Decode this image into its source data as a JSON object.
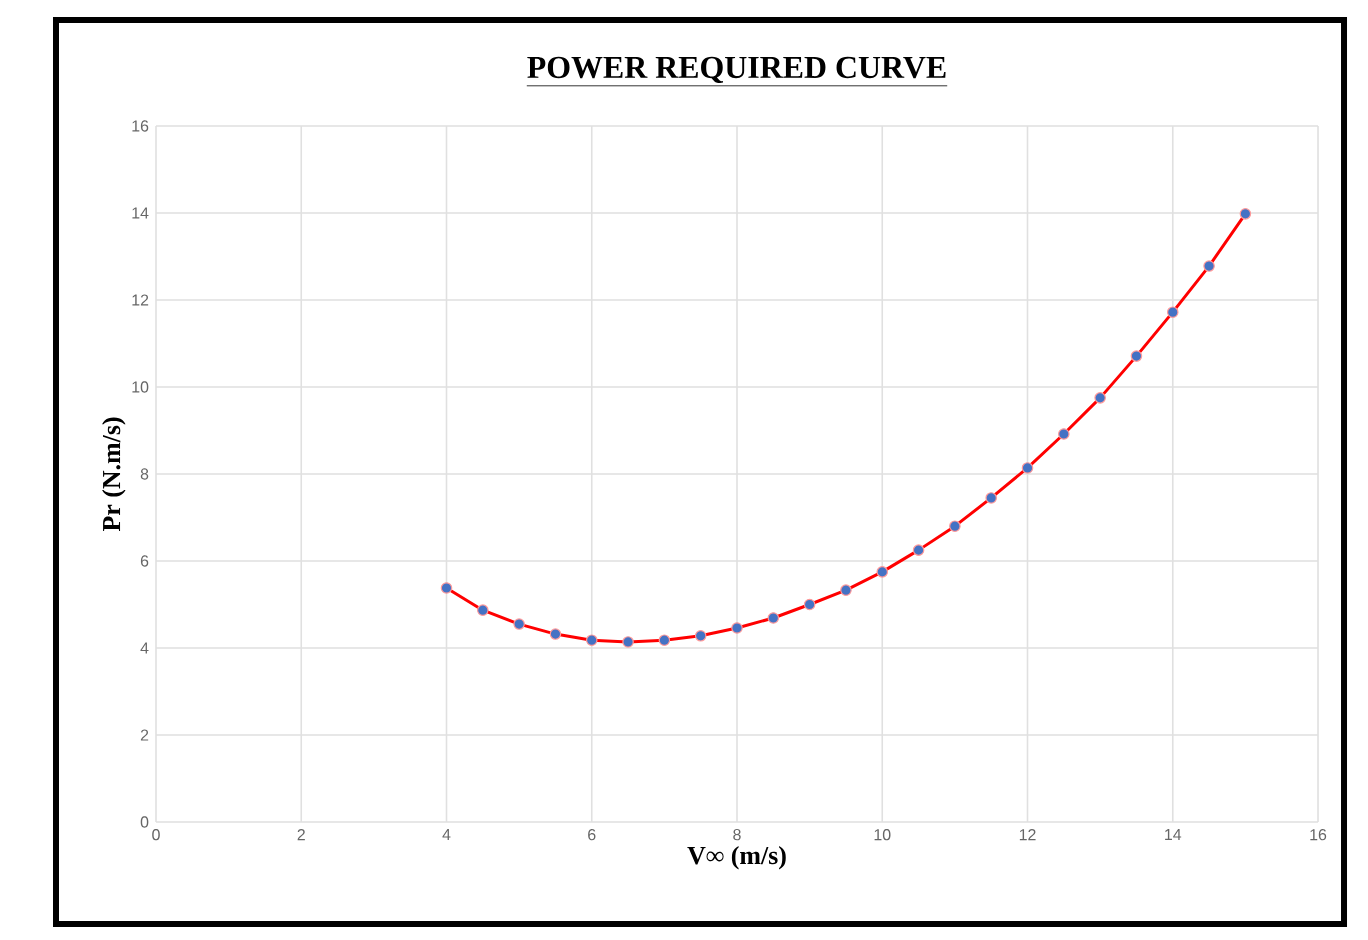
{
  "chart_data": {
    "type": "line",
    "title": "POWER REQUIRED CURVE",
    "xlabel": "V∞ (m/s)",
    "ylabel": "Pr (N.m/s)",
    "x": [
      4,
      4.5,
      5,
      5.5,
      6,
      6.5,
      7,
      7.5,
      8,
      8.5,
      9,
      9.5,
      10,
      10.5,
      11,
      11.5,
      12,
      12.5,
      13,
      13.5,
      14,
      14.5,
      15
    ],
    "series": [
      {
        "color": "#ff0000",
        "values": [
          5.38,
          4.87,
          4.55,
          4.32,
          4.18,
          4.14,
          4.18,
          4.28,
          4.46,
          4.69,
          5.0,
          5.33,
          5.75,
          6.25,
          6.8,
          7.45,
          8.14,
          8.92,
          9.75,
          10.71,
          11.72,
          12.78,
          13.98
        ]
      }
    ],
    "marker": "circle",
    "line_style": "solid",
    "xlim": [
      0,
      16
    ],
    "ylim": [
      0,
      16
    ],
    "xticks": [
      0,
      2,
      4,
      6,
      8,
      10,
      12,
      14,
      16
    ],
    "yticks": [
      0,
      2,
      4,
      6,
      8,
      10,
      12,
      14,
      16
    ],
    "grid": true
  }
}
